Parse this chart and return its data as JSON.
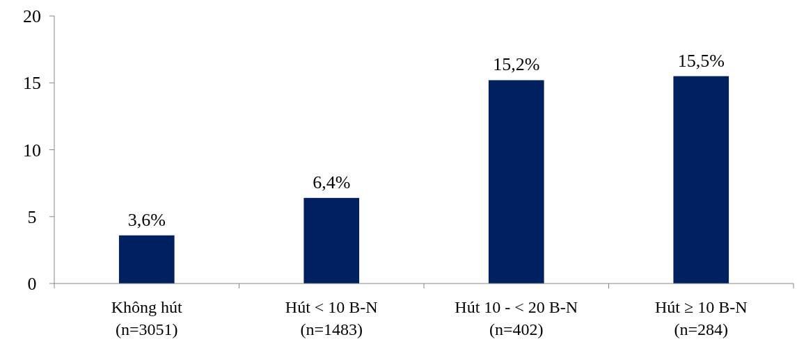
{
  "chart_data": {
    "type": "bar",
    "categories": [
      "Không hút\n(n=3051)",
      "Hút < 10 B-N\n(n=1483)",
      "Hút 10 - < 20 B-N\n(n=402)",
      "Hút ≥ 10 B-N\n(n=284)"
    ],
    "values": [
      3.6,
      6.4,
      15.2,
      15.5
    ],
    "value_labels": [
      "3,6%",
      "6,4%",
      "15,2%",
      "15,5%"
    ],
    "color": "#002060",
    "ylim": [
      0,
      20
    ],
    "yticks": [
      0,
      5,
      10,
      15,
      20
    ],
    "grid": false
  }
}
